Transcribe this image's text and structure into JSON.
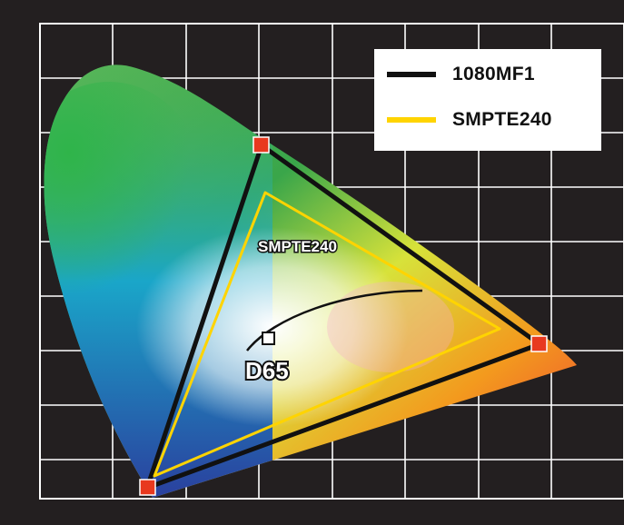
{
  "legend": {
    "items": [
      {
        "label": "1080MF1",
        "color": "#111111"
      },
      {
        "label": "SMPTE240",
        "color": "#ffd400"
      }
    ]
  },
  "diagram": {
    "inner_label": "SMPTE240",
    "whitepoint_label": "D65"
  },
  "colors": {
    "background": "#231f20",
    "grid": "#ffffff",
    "triangle_1080MF1": "#111111",
    "triangle_SMPTE240": "#ffd400",
    "primary_marker": "#e8391f"
  }
}
